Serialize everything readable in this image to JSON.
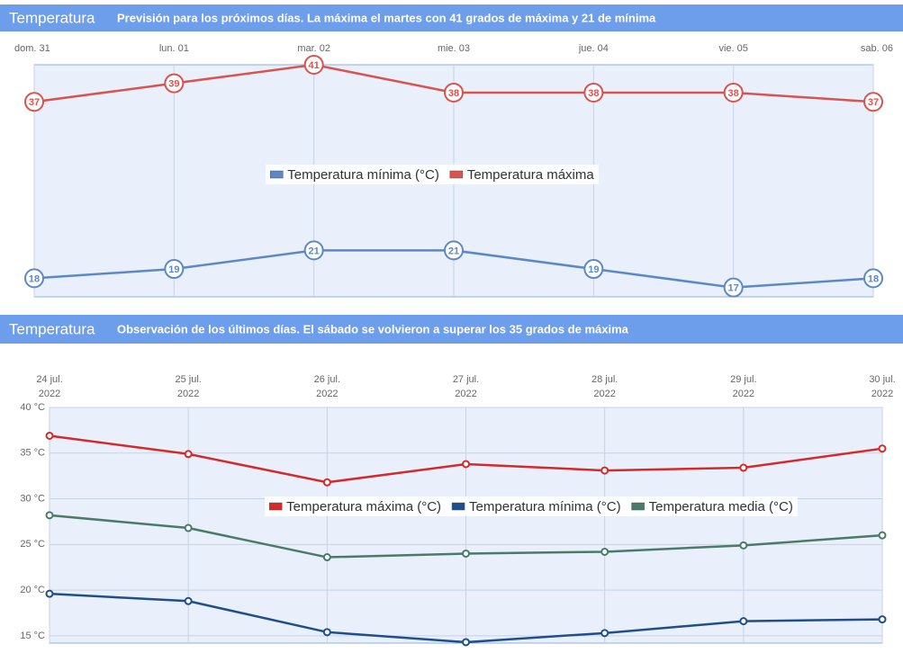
{
  "chart_data": [
    {
      "type": "line",
      "header": "Temperatura",
      "title": "Previsión para los próximos días. La máxima el martes con 41 grados de máxima y 21 de mínima",
      "categories": [
        "dom. 31",
        "lun. 01",
        "mar. 02",
        "mie. 03",
        "jue. 04",
        "vie. 05",
        "sab. 06"
      ],
      "series": [
        {
          "name": "Temperatura mínima (°C)",
          "color": "#5b88c8",
          "values": [
            18,
            19,
            21,
            21,
            19,
            17,
            18
          ]
        },
        {
          "name": "Temperatura máxima",
          "color": "#d9534f",
          "values": [
            37,
            39,
            41,
            38,
            38,
            38,
            37
          ]
        }
      ],
      "ylim": [
        16,
        41
      ],
      "data_labels": true
    },
    {
      "type": "line",
      "header": "Temperatura",
      "title": "Observación de los últimos días. El sábado se volvieron a superar los 35 grados de máxima",
      "categories": [
        "24 jul. 2022",
        "25 jul. 2022",
        "26 jul. 2022",
        "27 jul. 2022",
        "28 jul. 2022",
        "29 jul. 2022",
        "30 jul. 2022"
      ],
      "series": [
        {
          "name": "Temperatura máxima (°C)",
          "color": "#d42a2a",
          "values": [
            36.9,
            34.9,
            31.8,
            33.8,
            33.1,
            33.4,
            35.5
          ]
        },
        {
          "name": "Temperatura mínima (°C)",
          "color": "#1f4e8c",
          "values": [
            19.6,
            18.8,
            15.4,
            14.3,
            15.3,
            16.6,
            16.8
          ]
        },
        {
          "name": "Temperatura media (°C)",
          "color": "#4a7a68",
          "values": [
            28.2,
            26.8,
            23.6,
            24.0,
            24.2,
            24.9,
            26.0
          ]
        }
      ],
      "ylim": [
        14.2,
        40
      ],
      "yticks": [
        {
          "value": 40,
          "label": "40 °C"
        },
        {
          "value": 35,
          "label": "35 °C"
        },
        {
          "value": 30,
          "label": "30 °C"
        },
        {
          "value": 25,
          "label": "25 °C"
        },
        {
          "value": 20,
          "label": "20 °C"
        },
        {
          "value": 15,
          "label": "15 °C"
        }
      ],
      "grid": true,
      "data_labels": false
    }
  ]
}
